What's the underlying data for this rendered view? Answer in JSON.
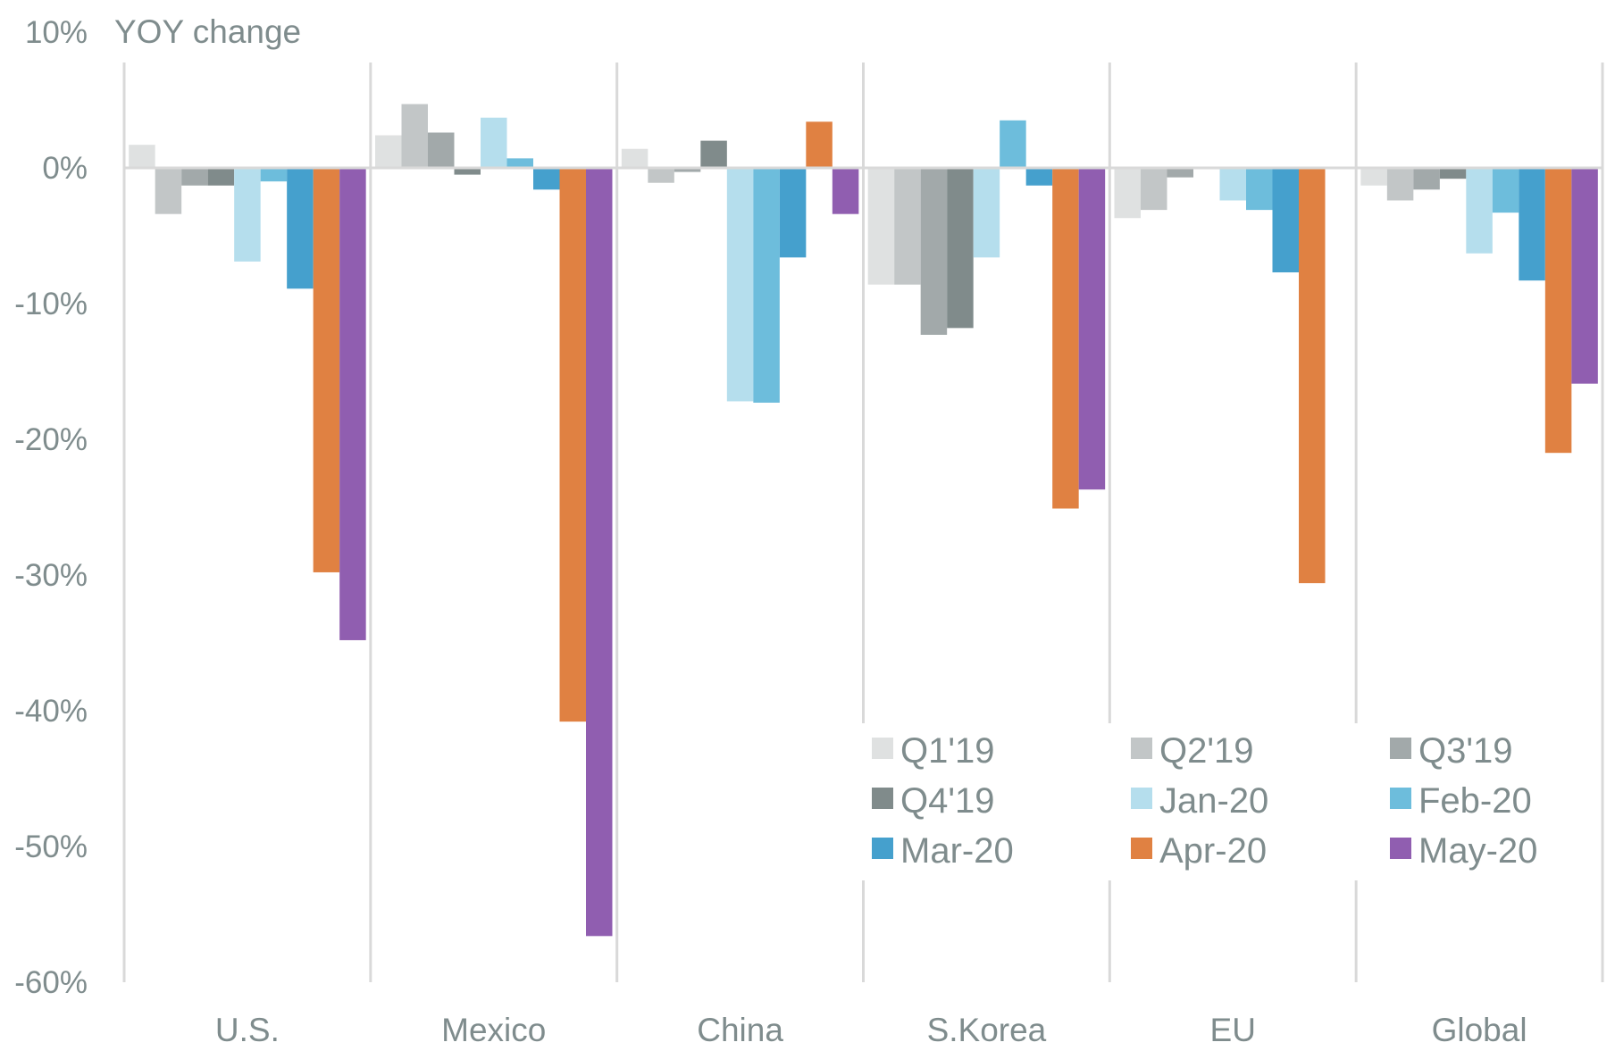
{
  "chart_data": {
    "type": "bar",
    "title": "YOY change",
    "xlabel": "",
    "ylabel": "YOY change",
    "ylim": [
      -60,
      10
    ],
    "yticks": [
      10,
      0,
      -10,
      -20,
      -30,
      -40,
      -50,
      -60
    ],
    "ytick_labels": [
      "10%",
      "0%",
      "-10%",
      "-20%",
      "-30%",
      "-40%",
      "-50%",
      "-60%"
    ],
    "grid": "vertical category separators",
    "legend_position": "bottom-right inside plot, 3 columns",
    "categories": [
      "U.S.",
      "Mexico",
      "China",
      "S.Korea",
      "EU",
      "Global"
    ],
    "series": [
      {
        "name": "Q1'19",
        "color": "#dfe1e1",
        "values": [
          1.7,
          2.4,
          1.4,
          -8.6,
          -3.7,
          -1.3
        ]
      },
      {
        "name": "Q2'19",
        "color": "#c2c6c7",
        "values": [
          -3.4,
          4.7,
          -1.1,
          -8.6,
          -3.1,
          -2.4
        ]
      },
      {
        "name": "Q3'19",
        "color": "#a2a9aa",
        "values": [
          -1.3,
          2.6,
          -0.3,
          -12.3,
          -0.7,
          -1.6
        ]
      },
      {
        "name": "Q4'19",
        "color": "#808b8b",
        "values": [
          -1.3,
          -0.5,
          2.0,
          -11.8,
          -0.1,
          -0.8
        ]
      },
      {
        "name": "Jan-20",
        "color": "#b5deed",
        "values": [
          -6.9,
          3.7,
          -17.2,
          -6.6,
          -2.4,
          -6.3
        ]
      },
      {
        "name": "Feb-20",
        "color": "#6dbddc",
        "values": [
          -1.0,
          0.7,
          -17.3,
          3.5,
          -3.1,
          -3.3
        ]
      },
      {
        "name": "Mar-20",
        "color": "#45a0cd",
        "values": [
          -8.9,
          -1.6,
          -6.6,
          -1.3,
          -7.7,
          -8.3
        ]
      },
      {
        "name": "Apr-20",
        "color": "#e08142",
        "values": [
          -29.8,
          -40.8,
          3.4,
          -25.1,
          -30.6,
          -21.0
        ]
      },
      {
        "name": "May-20",
        "color": "#905eb0",
        "values": [
          -34.8,
          -56.6,
          -3.4,
          -23.7,
          null,
          -15.9
        ]
      }
    ]
  }
}
